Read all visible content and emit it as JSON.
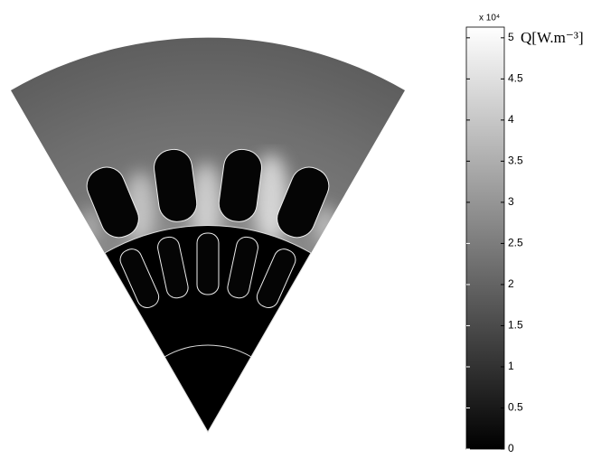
{
  "chart_data": {
    "type": "heatmap",
    "colormap": "gray",
    "colorbar": {
      "label": "Q[W.m⁻³]",
      "multiplier": "x 10⁴",
      "zlim": [
        0,
        5.13
      ],
      "ticks": [
        0,
        0.5,
        1,
        1.5,
        2,
        2.5,
        3,
        3.5,
        4,
        4.5,
        5
      ]
    }
  }
}
